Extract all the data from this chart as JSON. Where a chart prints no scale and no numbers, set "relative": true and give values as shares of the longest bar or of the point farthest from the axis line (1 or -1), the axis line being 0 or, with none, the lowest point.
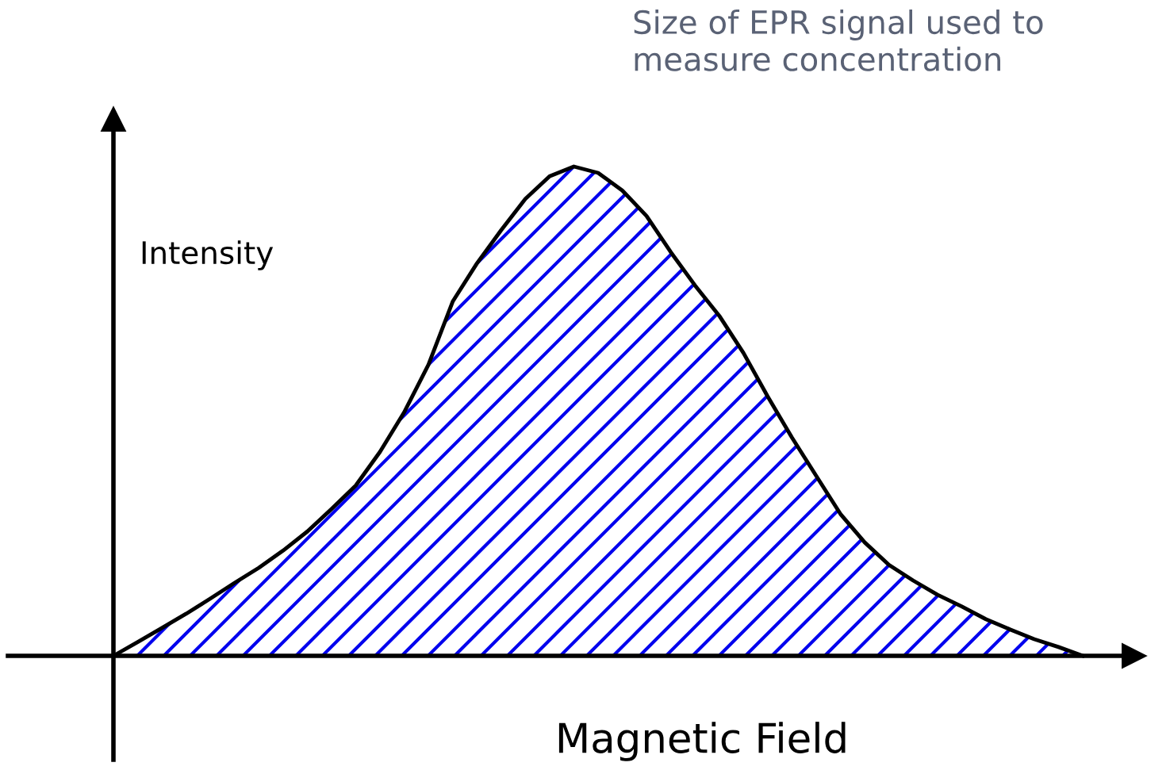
{
  "chart_data": {
    "type": "area",
    "relative": true,
    "title": "Size of EPR signal used to measure concentration",
    "xlabel": "Magnetic Field",
    "ylabel": "Intensity",
    "line_style": "solid",
    "categories": [
      null,
      null,
      null,
      null,
      null,
      null,
      null,
      null,
      null,
      null,
      null,
      null,
      null,
      null,
      null,
      null,
      null,
      null,
      null,
      null,
      null,
      null,
      null,
      null,
      null,
      null,
      null,
      null,
      null,
      null,
      null,
      null,
      null,
      null,
      null,
      null,
      null,
      null,
      null,
      null,
      null
    ],
    "series": [
      {
        "color": "#0000ee",
        "values": [
          0,
          0.028,
          0.057,
          0.086,
          0.117,
          0.149,
          0.18,
          0.215,
          0.254,
          0.3,
          0.348,
          0.417,
          0.498,
          0.595,
          0.724,
          0.802,
          0.87,
          0.934,
          0.98,
          1.0,
          0.987,
          0.951,
          0.899,
          0.825,
          0.757,
          0.695,
          0.619,
          0.53,
          0.446,
          0.368,
          0.29,
          0.232,
          0.186,
          0.154,
          0.125,
          0.101,
          0.075,
          0.054,
          0.034,
          0.018,
          0
        ]
      }
    ]
  }
}
